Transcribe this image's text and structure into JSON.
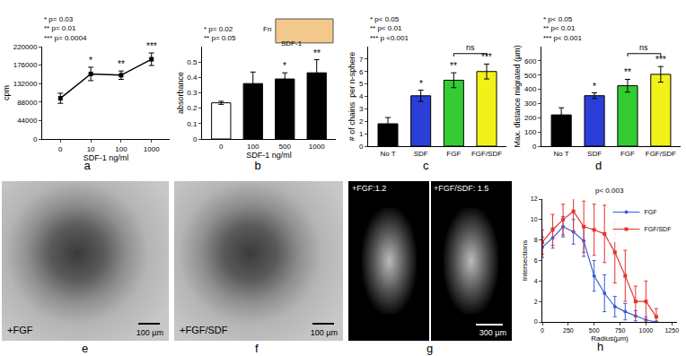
{
  "chart_data": [
    {
      "panel": "a",
      "type": "line",
      "x_label": "SDF-1 ng/ml",
      "y_label": "cpm",
      "categories": [
        "0",
        "10",
        "100",
        "1000"
      ],
      "values": [
        97000,
        155000,
        152000,
        190000
      ],
      "errors": [
        12000,
        16000,
        10000,
        15000
      ],
      "color": "#000000",
      "marker": "square",
      "ylim": [
        0,
        220000
      ],
      "yticks": [
        0,
        44000,
        88000,
        132000,
        176000,
        220000
      ],
      "significance": [
        null,
        "*",
        "**",
        "***"
      ],
      "notes": [
        "* p= 0.03",
        "** p= 0.01",
        "*** p= 0.0004"
      ]
    },
    {
      "panel": "b",
      "type": "bar",
      "x_label": "SDF-1 ng/ml",
      "y_label": "absorbance",
      "categories": [
        "0",
        "100",
        "500",
        "1000"
      ],
      "values": [
        0.235,
        0.36,
        0.39,
        0.43
      ],
      "errors": [
        0.01,
        0.075,
        0.04,
        0.085
      ],
      "colors": [
        "#ffffff",
        "#000000",
        "#000000",
        "#000000"
      ],
      "ylim": [
        0,
        0.6
      ],
      "yticks": [
        0,
        0.1,
        0.2,
        0.3,
        0.4,
        0.5
      ],
      "significance": [
        null,
        null,
        "*",
        "**"
      ],
      "notes": [
        "* p= 0.02",
        "** p= 0.05"
      ],
      "inset_labels": [
        "Fn",
        "SDF-1"
      ]
    },
    {
      "panel": "c",
      "type": "bar",
      "y_label": "# of chains  per n-sphere",
      "categories": [
        "No T",
        "SDF",
        "FGF",
        "FGF/SDF"
      ],
      "values": [
        1.8,
        4.05,
        5.3,
        6.0
      ],
      "errors": [
        0.5,
        0.45,
        0.6,
        0.6
      ],
      "colors": [
        "#000000",
        "#2b3fd8",
        "#33cc33",
        "#f2f21a"
      ],
      "ylim": [
        0,
        8
      ],
      "yticks": [
        0,
        1,
        2,
        3,
        4,
        5,
        6,
        7
      ],
      "significance": [
        null,
        "*",
        "**",
        "***"
      ],
      "notes": [
        "* p< 0.05",
        "** p< 0.01",
        "*** p <0.001"
      ],
      "bracket": {
        "text": "ns",
        "between": [
          "FGF",
          "FGF/SDF"
        ]
      }
    },
    {
      "panel": "d",
      "type": "bar",
      "y_label": "Max. distance migrated (µm)",
      "categories": [
        "No T",
        "SDF",
        "FGF",
        "FGF/SDF"
      ],
      "values": [
        220,
        355,
        425,
        505
      ],
      "errors": [
        50,
        20,
        45,
        55
      ],
      "colors": [
        "#000000",
        "#2b3fd8",
        "#33cc33",
        "#f2f21a"
      ],
      "ylim": [
        0,
        700
      ],
      "yticks": [
        0,
        100,
        200,
        300,
        400,
        500,
        600
      ],
      "significance": [
        null,
        "*",
        "**",
        "***"
      ],
      "notes": [
        "* p< 0.05",
        "** p< 0.01",
        "*** p< 0.001"
      ],
      "bracket": {
        "text": "ns",
        "between": [
          "FGF",
          "FGF/SDF"
        ]
      }
    },
    {
      "panel": "e",
      "type": "image",
      "labels": [
        "+FGF"
      ],
      "scale_bar": "100 µm"
    },
    {
      "panel": "f",
      "type": "image",
      "labels": [
        "+FGF/SDF"
      ],
      "scale_bar": "100 µm"
    },
    {
      "panel": "g",
      "type": "image",
      "labels": [
        "+FGF:1.2",
        "+FGF/SDF: 1.5"
      ],
      "scale_bar": "300 µm"
    },
    {
      "panel": "h",
      "type": "line",
      "x_label": "Radius(µm)",
      "y_label": "Intersections",
      "x": [
        0,
        100,
        200,
        300,
        400,
        500,
        600,
        700,
        800,
        900,
        1000,
        1100
      ],
      "series": [
        {
          "name": "FGF",
          "color": "#3b5bdb",
          "marker": "circle",
          "values": [
            7.3,
            8.2,
            9.3,
            8.8,
            7.9,
            4.5,
            2.8,
            1.5,
            1.0,
            0.6,
            0.2,
            0
          ],
          "errors": [
            1,
            1,
            1,
            1.2,
            1.5,
            1.5,
            1.8,
            1,
            0.8,
            0.5,
            0.3,
            0
          ]
        },
        {
          "name": "FGF/SDF",
          "color": "#e8322a",
          "marker": "square",
          "values": [
            7.8,
            9.0,
            10.0,
            10.8,
            9.3,
            9.0,
            8.6,
            6.8,
            4.5,
            2.0,
            2.0,
            0.5
          ],
          "errors": [
            1.2,
            1.5,
            1.5,
            2,
            2.5,
            2.5,
            2.8,
            3,
            2.5,
            1.5,
            2,
            0.8
          ]
        }
      ],
      "xlim": [
        0,
        1300
      ],
      "xticks": [
        0,
        250,
        500,
        750,
        1000,
        1250
      ],
      "ylim": [
        0,
        12
      ],
      "yticks": [
        0,
        2,
        4,
        6,
        8,
        10,
        12
      ],
      "legend": "upper right",
      "notes": [
        "p< 0.003"
      ]
    }
  ]
}
